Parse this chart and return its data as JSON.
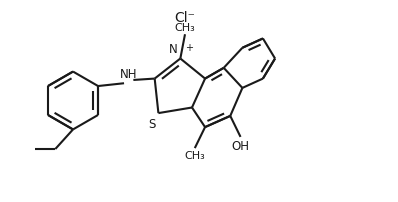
{
  "background_color": "#ffffff",
  "line_color": "#1a1a1a",
  "line_width": 1.5,
  "text_color": "#1a1a1a",
  "font_size": 8.5,
  "figsize": [
    3.98,
    2.03
  ],
  "dpi": 100,
  "xlim": [
    0.0,
    8.5
  ],
  "ylim": [
    0.0,
    4.3
  ]
}
